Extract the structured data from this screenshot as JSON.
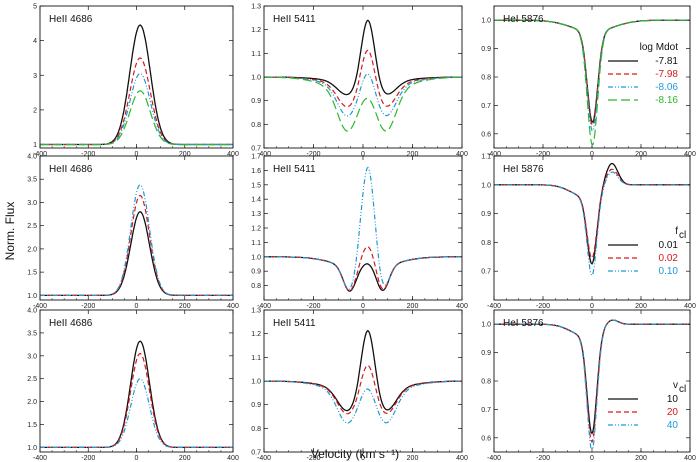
{
  "figure": {
    "xlabel": "Velocity (km s⁻¹)",
    "ylabel": "Norm. Flux"
  },
  "colors": {
    "black": "#111111",
    "red": "#d7191c",
    "blue": "#1f9ad6",
    "green": "#2cb82c"
  },
  "chart_data": [
    {
      "type": "line",
      "row": 0,
      "col": 0,
      "title": "HeII 4686",
      "xlim": [
        -400,
        400
      ],
      "ylim": [
        0.9,
        5
      ],
      "xticks": [
        "-400",
        "-200",
        "0",
        "200",
        "400"
      ],
      "yticks": [
        "1",
        "2",
        "3",
        "4",
        "5"
      ],
      "yvals": [
        1,
        2,
        3,
        4,
        5
      ],
      "line": "emission",
      "center": 15,
      "width": 60,
      "base": 1.0,
      "series": [
        {
          "name": "-7.81",
          "peak": 4.45
        },
        {
          "name": "-7.98",
          "peak": 3.5
        },
        {
          "name": "-8.06",
          "peak": 3.05
        },
        {
          "name": "-8.16",
          "peak": 2.55
        }
      ]
    },
    {
      "type": "line",
      "row": 0,
      "col": 1,
      "title": "HeII 5411",
      "xlim": [
        -400,
        400
      ],
      "ylim": [
        0.7,
        1.3
      ],
      "xticks": [
        "-400",
        "-200",
        "0",
        "200",
        "400"
      ],
      "yticks": [
        "0.7",
        "0.8",
        "0.9",
        "1.0",
        "1.1",
        "1.2",
        "1.3"
      ],
      "yvals": [
        0.7,
        0.8,
        0.9,
        1.0,
        1.1,
        1.2,
        1.3
      ],
      "line": "pcygni5411",
      "series": [
        {
          "name": "-7.81",
          "abs": 0.06,
          "em": 0.28
        },
        {
          "name": "-7.98",
          "abs": 0.1,
          "em": 0.18
        },
        {
          "name": "-8.06",
          "abs": 0.13,
          "em": 0.1
        },
        {
          "name": "-8.16",
          "abs": 0.18,
          "em": 0.03
        }
      ]
    },
    {
      "type": "line",
      "row": 0,
      "col": 2,
      "title": "HeI 5876",
      "xlim": [
        -400,
        400
      ],
      "ylim": [
        0.55,
        1.05
      ],
      "xticks": [
        "-400",
        "-200",
        "0",
        "200",
        "400"
      ],
      "yticks": [
        "0.6",
        "0.7",
        "0.8",
        "0.9",
        "1.0"
      ],
      "yvals": [
        0.6,
        0.7,
        0.8,
        0.9,
        1.0
      ],
      "line": "absorption",
      "legend_title": "log Mdot",
      "series": [
        {
          "name": "-7.81",
          "depth": 0.32
        },
        {
          "name": "-7.98",
          "depth": 0.33
        },
        {
          "name": "-8.06",
          "depth": 0.35
        },
        {
          "name": "-8.16",
          "depth": 0.4
        }
      ]
    },
    {
      "type": "line",
      "row": 1,
      "col": 0,
      "title": "HeII 4686",
      "xlim": [
        -400,
        400
      ],
      "ylim": [
        0.9,
        4.0
      ],
      "xticks": [
        "-400",
        "-200",
        "0",
        "200",
        "400"
      ],
      "yticks": [
        "1.0",
        "1.5",
        "2.0",
        "2.5",
        "3.0",
        "3.5",
        "4.0"
      ],
      "yvals": [
        1.0,
        1.5,
        2.0,
        2.5,
        3.0,
        3.5,
        4.0
      ],
      "line": "emission",
      "center": 15,
      "width": 55,
      "base": 1.0,
      "series": [
        {
          "name": "0.01",
          "peak": 2.8
        },
        {
          "name": "0.02",
          "peak": 3.15
        },
        {
          "name": "0.10",
          "peak": 3.38
        }
      ]
    },
    {
      "type": "line",
      "row": 1,
      "col": 1,
      "title": "HeII 5411",
      "xlim": [
        -400,
        400
      ],
      "ylim": [
        0.7,
        1.7
      ],
      "xticks": [
        "-400",
        "-200",
        "0",
        "200",
        "400"
      ],
      "yticks": [
        "0.8",
        "0.9",
        "1.0",
        "1.1",
        "1.2",
        "1.3",
        "1.4",
        "1.5",
        "1.6",
        "1.7"
      ],
      "yvals": [
        0.8,
        0.9,
        1.0,
        1.1,
        1.2,
        1.3,
        1.4,
        1.5,
        1.6,
        1.7
      ],
      "line": "double5411",
      "series": [
        {
          "name": "0.01",
          "peak": 0.95
        },
        {
          "name": "0.02",
          "peak": 1.07
        },
        {
          "name": "0.10",
          "peak": 1.62
        }
      ]
    },
    {
      "type": "line",
      "row": 1,
      "col": 2,
      "title": "HeI 5876",
      "xlim": [
        -400,
        400
      ],
      "ylim": [
        0.6,
        1.1
      ],
      "xticks": [
        "-400",
        "-200",
        "0",
        "200",
        "400"
      ],
      "yticks": [
        "0.7",
        "0.8",
        "0.9",
        "1.0",
        "1.1"
      ],
      "yvals": [
        0.7,
        0.8,
        0.9,
        1.0,
        1.1
      ],
      "line": "pcygni5876",
      "legend_title": "f",
      "legend_title_sub": "cl",
      "series": [
        {
          "name": "0.01",
          "depth": 0.24,
          "em": 0.08
        },
        {
          "name": "0.02",
          "depth": 0.22,
          "em": 0.06
        },
        {
          "name": "0.10",
          "depth": 0.28,
          "em": 0.05
        }
      ]
    },
    {
      "type": "line",
      "row": 2,
      "col": 0,
      "title": "HeII 4686",
      "xlim": [
        -400,
        400
      ],
      "ylim": [
        0.9,
        4.0
      ],
      "xticks": [
        "-400",
        "-200",
        "0",
        "200",
        "400"
      ],
      "yticks": [
        "1.0",
        "1.5",
        "2.0",
        "2.5",
        "3.0",
        "3.5",
        "4.0"
      ],
      "yvals": [
        1.0,
        1.5,
        2.0,
        2.5,
        3.0,
        3.5,
        4.0
      ],
      "line": "emission",
      "center": 15,
      "width": 55,
      "base": 1.0,
      "series": [
        {
          "name": "10",
          "peak": 3.32
        },
        {
          "name": "20",
          "peak": 3.05
        },
        {
          "name": "40",
          "peak": 2.5
        }
      ]
    },
    {
      "type": "line",
      "row": 2,
      "col": 1,
      "title": "HeII 5411",
      "xlim": [
        -400,
        400
      ],
      "ylim": [
        0.7,
        1.3
      ],
      "xticks": [
        "-400",
        "-200",
        "0",
        "200",
        "400"
      ],
      "yticks": [
        "0.7",
        "0.8",
        "0.9",
        "1.0",
        "1.1",
        "1.2",
        "1.3"
      ],
      "yvals": [
        0.7,
        0.8,
        0.9,
        1.0,
        1.1,
        1.2,
        1.3
      ],
      "line": "pcygni5411",
      "series": [
        {
          "name": "10",
          "abs": 0.1,
          "em": 0.28
        },
        {
          "name": "20",
          "abs": 0.11,
          "em": 0.14
        },
        {
          "name": "40",
          "abs": 0.14,
          "em": 0.06
        }
      ]
    },
    {
      "type": "line",
      "row": 2,
      "col": 2,
      "title": "HeI 5876",
      "xlim": [
        -400,
        400
      ],
      "ylim": [
        0.55,
        1.05
      ],
      "xticks": [
        "-400",
        "-200",
        "0",
        "200",
        "400"
      ],
      "yticks": [
        "0.6",
        "0.7",
        "0.8",
        "0.9",
        "1.0"
      ],
      "yvals": [
        0.6,
        0.7,
        0.8,
        0.9,
        1.0
      ],
      "line": "pcygni5876",
      "legend_title": "v",
      "legend_title_sub": "cl",
      "series": [
        {
          "name": "10",
          "depth": 0.35,
          "em": 0.02
        },
        {
          "name": "20",
          "depth": 0.38,
          "em": 0.02
        },
        {
          "name": "40",
          "depth": 0.41,
          "em": 0.02
        }
      ]
    }
  ]
}
